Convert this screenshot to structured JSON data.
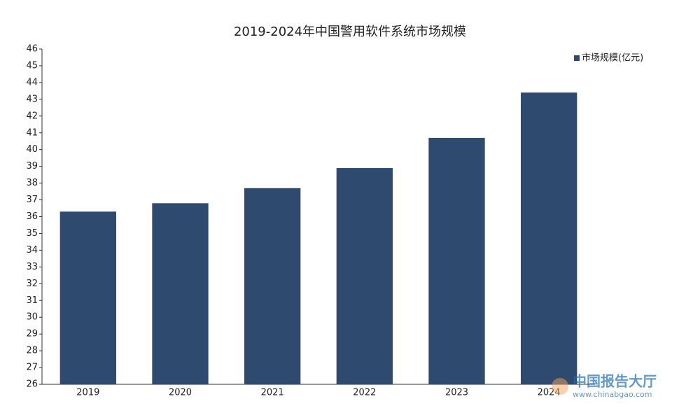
{
  "chart_data": {
    "type": "bar",
    "title": "2019-2024年中国警用软件系统市场规模",
    "categories": [
      "2019",
      "2020",
      "2021",
      "2022",
      "2023",
      "2024"
    ],
    "series": [
      {
        "name": "市场规模(亿元)",
        "color": "#2e4a6e",
        "values": [
          36.3,
          36.8,
          37.7,
          38.9,
          40.7,
          43.4
        ]
      }
    ],
    "ylim": [
      26,
      46
    ],
    "yticks": [
      26,
      27,
      28,
      29,
      30,
      31,
      32,
      33,
      34,
      35,
      36,
      37,
      38,
      39,
      40,
      41,
      42,
      43,
      44,
      45,
      46
    ],
    "grid": false,
    "legend": "top-right",
    "watermark": {
      "name": "中国报告大厅",
      "url": "www.chinabgao.com"
    }
  }
}
